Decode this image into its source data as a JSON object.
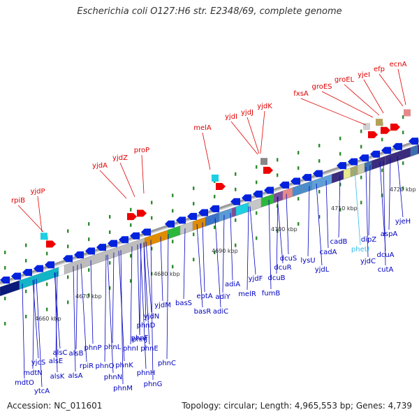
{
  "title": "Escherichia coli O127:H6 str. E2348/69, complete genome",
  "footer": {
    "accession": "Accession: NC_011601",
    "summary": "Topology: circular; Length: 4,965,553 bp; Genes: 4,739"
  },
  "colors": {
    "backbone": "#9a9a9a",
    "dots": "#2e8b2e",
    "forward_label": "#e00000",
    "reverse_label": "#0000c0",
    "highlight_label": "#33bbee",
    "forward_arrow": "#ee0000",
    "reverse_arrow": "#0022dd"
  },
  "ticks": [
    "4660 kbp",
    "4670 kbp",
    "4680 kbp",
    "4690 kbp",
    "4700 kbp",
    "4710 kbp",
    "4720 kbp"
  ],
  "forward_genes": [
    "rpiB",
    "yjdP",
    "yjdA",
    "yjdZ",
    "proP",
    "melA",
    "yjdI",
    "yjdJ",
    "yjdK",
    "fxsA",
    "groES",
    "groEL",
    "yjeI",
    "efp",
    "ecnA"
  ],
  "reverse_genes": [
    "ytcA",
    "mdtO",
    "mdtN",
    "yjcS",
    "alsK",
    "alsE",
    "alsC",
    "alsA",
    "alsB",
    "rpiR",
    "phnP",
    "phnO",
    "phnN",
    "phnM",
    "phnL",
    "phnK",
    "phnJ",
    "phnI",
    "phnH",
    "phnG",
    "phnF",
    "phnE",
    "phnD",
    "phnC",
    "yjdN",
    "yjdM",
    "basS",
    "basR",
    "eptA",
    "adiY",
    "adiC",
    "adiA",
    "melR",
    "yjdF",
    "fumB",
    "dcuB",
    "dcuR",
    "dcuS",
    "lysU",
    "yjdL",
    "cadA",
    "cadB",
    "pheU",
    "yjdC",
    "dipZ",
    "dcuA",
    "cutA",
    "aspA",
    "yjeH"
  ]
}
